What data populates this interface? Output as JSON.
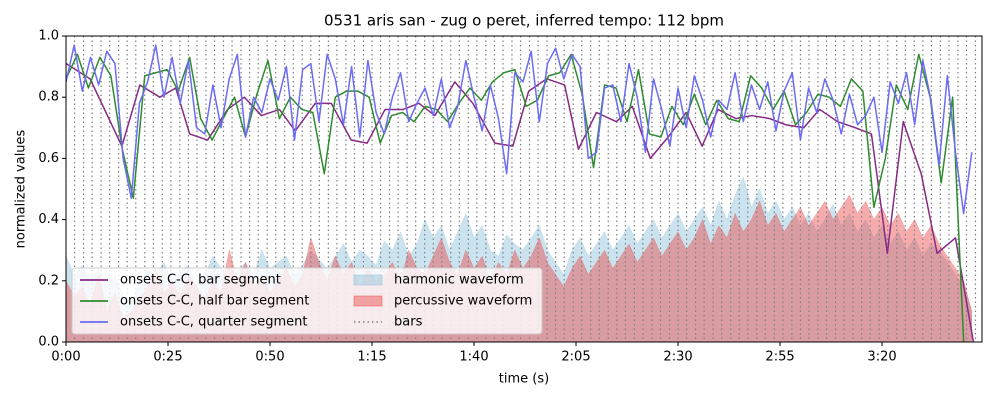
{
  "chart_data": {
    "type": "line",
    "title": "0531 aris san - zug o peret, inferred tempo: 112 bpm",
    "xlabel": "time (s)",
    "ylabel": "normalized values",
    "xlim": [
      0,
      224.5
    ],
    "ylim": [
      0,
      1
    ],
    "xticks": [
      {
        "value": 0,
        "label": "0:00"
      },
      {
        "value": 25,
        "label": "0:25"
      },
      {
        "value": 50,
        "label": "0:50"
      },
      {
        "value": 75,
        "label": "1:15"
      },
      {
        "value": 100,
        "label": "1:40"
      },
      {
        "value": 125,
        "label": "2:05"
      },
      {
        "value": 150,
        "label": "2:30"
      },
      {
        "value": 175,
        "label": "2:55"
      },
      {
        "value": 200,
        "label": "3:20"
      }
    ],
    "yticks": [
      {
        "value": 0,
        "label": "0.0"
      },
      0.2,
      0.4,
      0.6,
      0.8,
      {
        "value": 1,
        "label": "1.0"
      }
    ],
    "legend": "lower left",
    "series": [
      {
        "name": "onsets C-C, bar segment",
        "color": "#862a86",
        "kind": "line",
        "x": [
          0,
          5.9,
          13.7,
          18.1,
          23.0,
          26.9,
          30.3,
          34.7,
          39.6,
          43.7,
          47.9,
          52.3,
          56.2,
          61.1,
          65.0,
          69.9,
          73.8,
          78.2,
          82.6,
          86.5,
          90.4,
          95.3,
          99.7,
          105.1,
          109.5,
          113.4,
          117.8,
          122.2,
          125.6,
          130.0,
          134.9,
          138.8,
          143.2,
          147.6,
          152.0,
          155.9,
          159.8,
          164.2,
          168.1,
          172.5,
          176.4,
          180.8,
          184.7,
          189.1,
          193.5,
          197.4,
          201.3,
          205.2,
          209.6,
          213.5,
          218.0,
          222.4
        ],
        "values": [
          0.91,
          0.86,
          0.64,
          0.84,
          0.8,
          0.83,
          0.68,
          0.66,
          0.76,
          0.8,
          0.74,
          0.76,
          0.69,
          0.78,
          0.78,
          0.66,
          0.65,
          0.76,
          0.76,
          0.78,
          0.74,
          0.85,
          0.78,
          0.65,
          0.64,
          0.82,
          0.86,
          0.84,
          0.63,
          0.75,
          0.72,
          0.77,
          0.6,
          0.67,
          0.75,
          0.64,
          0.76,
          0.73,
          0.74,
          0.73,
          0.71,
          0.7,
          0.76,
          0.72,
          0.7,
          0.68,
          0.29,
          0.72,
          0.55,
          0.29,
          0.34,
          0.0
        ]
      },
      {
        "name": "onsets C-C, half bar segment",
        "color": "#2e8b2e",
        "kind": "line",
        "x": [
          0,
          2.8,
          5.5,
          8.3,
          11,
          13.8,
          16.5,
          19.3,
          22,
          24.8,
          27.5,
          30.3,
          33,
          35.8,
          38.5,
          41.3,
          44,
          46.8,
          49.5,
          52.3,
          55,
          57.8,
          60.5,
          63.3,
          66,
          68.8,
          71.5,
          74.3,
          77,
          79.8,
          82.5,
          85.3,
          88,
          90.8,
          93.5,
          96.3,
          99,
          101.8,
          104.5,
          107.3,
          110,
          112.8,
          115.5,
          118.3,
          121,
          123.8,
          126.5,
          129.3,
          132,
          134.8,
          137.5,
          140.3,
          143,
          145.8,
          148.5,
          151.3,
          154,
          156.8,
          159.5,
          162.3,
          165,
          167.8,
          170.5,
          173.3,
          176,
          178.8,
          181.5,
          184.3,
          187,
          189.8,
          192.5,
          195.3,
          198,
          200.8,
          203.5,
          206.3,
          209,
          211.8,
          214.5,
          217.3,
          220
        ],
        "values": [
          0.86,
          0.94,
          0.83,
          0.93,
          0.87,
          0.63,
          0.47,
          0.87,
          0.88,
          0.89,
          0.82,
          0.93,
          0.73,
          0.66,
          0.73,
          0.8,
          0.67,
          0.81,
          0.92,
          0.73,
          0.8,
          0.76,
          0.75,
          0.55,
          0.8,
          0.82,
          0.82,
          0.8,
          0.65,
          0.74,
          0.75,
          0.72,
          0.77,
          0.76,
          0.72,
          0.78,
          0.83,
          0.79,
          0.85,
          0.88,
          0.89,
          0.77,
          0.79,
          0.87,
          0.88,
          0.94,
          0.81,
          0.57,
          0.84,
          0.83,
          0.72,
          0.89,
          0.68,
          0.67,
          0.77,
          0.71,
          0.81,
          0.71,
          0.79,
          0.73,
          0.72,
          0.87,
          0.83,
          0.76,
          0.82,
          0.71,
          0.75,
          0.81,
          0.8,
          0.77,
          0.86,
          0.82,
          0.44,
          0.6,
          0.84,
          0.76,
          0.94,
          0.8,
          0.52,
          0.8,
          0.0
        ]
      },
      {
        "name": "onsets C-C, quarter segment",
        "color": "#6b6bf5",
        "kind": "line",
        "x": [
          0,
          2,
          4,
          6,
          8,
          10,
          12,
          14,
          16,
          18,
          20,
          22,
          24,
          26,
          28,
          30,
          32,
          34,
          36,
          38,
          40,
          42,
          44,
          46,
          48,
          50,
          52,
          54,
          56,
          58,
          60,
          62,
          64,
          66,
          68,
          70,
          72,
          74,
          76,
          78,
          80,
          82,
          84,
          86,
          88,
          90,
          92,
          94,
          96,
          98,
          100,
          102,
          104,
          106,
          108,
          110,
          112,
          114,
          116,
          118,
          120,
          122,
          124,
          126,
          128,
          130,
          132,
          134,
          136,
          138,
          140,
          142,
          144,
          146,
          148,
          150,
          152,
          154,
          156,
          158,
          160,
          162,
          164,
          166,
          168,
          170,
          172,
          174,
          176,
          178,
          180,
          182,
          184,
          186,
          188,
          190,
          192,
          194,
          196,
          198,
          200,
          202,
          204,
          206,
          208,
          210,
          212,
          214,
          216,
          218,
          220,
          222
        ],
        "values": [
          0.85,
          0.97,
          0.82,
          0.93,
          0.84,
          0.95,
          0.91,
          0.6,
          0.47,
          0.78,
          0.85,
          0.97,
          0.8,
          0.93,
          0.78,
          0.92,
          0.7,
          0.68,
          0.84,
          0.7,
          0.86,
          0.94,
          0.67,
          0.8,
          0.75,
          0.86,
          0.79,
          0.9,
          0.66,
          0.89,
          0.91,
          0.72,
          0.94,
          0.86,
          0.71,
          0.9,
          0.67,
          0.92,
          0.75,
          0.68,
          0.8,
          0.88,
          0.72,
          0.78,
          0.83,
          0.74,
          0.86,
          0.7,
          0.77,
          0.92,
          0.8,
          0.69,
          0.84,
          0.73,
          0.55,
          0.88,
          0.85,
          0.95,
          0.72,
          0.91,
          0.96,
          0.86,
          0.94,
          0.9,
          0.6,
          0.62,
          0.83,
          0.84,
          0.72,
          0.91,
          0.8,
          0.62,
          0.86,
          0.76,
          0.64,
          0.83,
          0.7,
          0.87,
          0.79,
          0.67,
          0.79,
          0.76,
          0.88,
          0.72,
          0.84,
          0.76,
          0.85,
          0.69,
          0.82,
          0.88,
          0.66,
          0.83,
          0.75,
          0.86,
          0.79,
          0.68,
          0.81,
          0.71,
          0.74,
          0.8,
          0.62,
          0.85,
          0.78,
          0.88,
          0.71,
          0.92,
          0.79,
          0.58,
          0.87,
          0.62,
          0.42,
          0.62
        ]
      },
      {
        "name": "harmonic waveform",
        "color": "rgba(140,190,220,0.45)",
        "kind": "area",
        "x": [
          0,
          2,
          4,
          6,
          8,
          10,
          12,
          14,
          16,
          18,
          20,
          22,
          24,
          26,
          28,
          30,
          32,
          34,
          36,
          38,
          40,
          42,
          44,
          46,
          48,
          50,
          52,
          54,
          56,
          58,
          60,
          62,
          64,
          66,
          68,
          70,
          72,
          74,
          76,
          78,
          80,
          82,
          84,
          86,
          88,
          90,
          92,
          94,
          96,
          98,
          100,
          102,
          104,
          106,
          108,
          110,
          112,
          114,
          116,
          118,
          120,
          122,
          124,
          126,
          128,
          130,
          132,
          134,
          136,
          138,
          140,
          142,
          144,
          146,
          148,
          150,
          152,
          154,
          156,
          158,
          160,
          162,
          164,
          166,
          168,
          170,
          172,
          174,
          176,
          178,
          180,
          182,
          184,
          186,
          188,
          190,
          192,
          194,
          196,
          198,
          200,
          202,
          204,
          206,
          208,
          210,
          212,
          214,
          216,
          218,
          220,
          222
        ],
        "values": [
          0.28,
          0.22,
          0.25,
          0.2,
          0.24,
          0.18,
          0.22,
          0.15,
          0.12,
          0.2,
          0.24,
          0.22,
          0.26,
          0.2,
          0.23,
          0.25,
          0.18,
          0.22,
          0.28,
          0.24,
          0.2,
          0.23,
          0.26,
          0.22,
          0.3,
          0.24,
          0.26,
          0.28,
          0.22,
          0.25,
          0.3,
          0.27,
          0.24,
          0.28,
          0.32,
          0.26,
          0.3,
          0.28,
          0.25,
          0.33,
          0.3,
          0.36,
          0.28,
          0.32,
          0.4,
          0.34,
          0.38,
          0.3,
          0.36,
          0.42,
          0.34,
          0.38,
          0.3,
          0.28,
          0.35,
          0.32,
          0.3,
          0.34,
          0.38,
          0.3,
          0.26,
          0.22,
          0.3,
          0.34,
          0.28,
          0.32,
          0.36,
          0.3,
          0.34,
          0.38,
          0.32,
          0.36,
          0.4,
          0.34,
          0.38,
          0.42,
          0.36,
          0.4,
          0.44,
          0.38,
          0.46,
          0.4,
          0.48,
          0.54,
          0.44,
          0.5,
          0.42,
          0.46,
          0.4,
          0.44,
          0.38,
          0.42,
          0.36,
          0.4,
          0.45,
          0.38,
          0.42,
          0.36,
          0.4,
          0.34,
          0.38,
          0.32,
          0.36,
          0.3,
          0.34,
          0.28,
          0.32,
          0.3,
          0.26,
          0.22,
          0.18,
          0.1
        ]
      },
      {
        "name": "percussive waveform",
        "color": "rgba(235,70,70,0.45)",
        "kind": "area",
        "x": [
          0,
          2,
          4,
          6,
          8,
          10,
          12,
          14,
          16,
          18,
          20,
          22,
          24,
          26,
          28,
          30,
          32,
          34,
          36,
          38,
          40,
          42,
          44,
          46,
          48,
          50,
          52,
          54,
          56,
          58,
          60,
          62,
          64,
          66,
          68,
          70,
          72,
          74,
          76,
          78,
          80,
          82,
          84,
          86,
          88,
          90,
          92,
          94,
          96,
          98,
          100,
          102,
          104,
          106,
          108,
          110,
          112,
          114,
          116,
          118,
          120,
          122,
          124,
          126,
          128,
          130,
          132,
          134,
          136,
          138,
          140,
          142,
          144,
          146,
          148,
          150,
          152,
          154,
          156,
          158,
          160,
          162,
          164,
          166,
          168,
          170,
          172,
          174,
          176,
          178,
          180,
          182,
          184,
          186,
          188,
          190,
          192,
          194,
          196,
          198,
          200,
          202,
          204,
          206,
          208,
          210,
          212,
          214,
          216,
          218,
          220,
          222
        ],
        "values": [
          0.2,
          0.15,
          0.18,
          0.12,
          0.22,
          0.1,
          0.16,
          0.08,
          0.1,
          0.14,
          0.18,
          0.24,
          0.16,
          0.2,
          0.15,
          0.22,
          0.18,
          0.14,
          0.2,
          0.16,
          0.3,
          0.2,
          0.26,
          0.18,
          0.22,
          0.16,
          0.2,
          0.24,
          0.18,
          0.22,
          0.34,
          0.26,
          0.2,
          0.28,
          0.22,
          0.26,
          0.18,
          0.24,
          0.2,
          0.22,
          0.26,
          0.2,
          0.3,
          0.24,
          0.22,
          0.28,
          0.34,
          0.26,
          0.22,
          0.3,
          0.24,
          0.28,
          0.2,
          0.26,
          0.22,
          0.3,
          0.24,
          0.28,
          0.34,
          0.26,
          0.22,
          0.18,
          0.24,
          0.28,
          0.22,
          0.26,
          0.3,
          0.24,
          0.28,
          0.32,
          0.26,
          0.3,
          0.34,
          0.28,
          0.32,
          0.36,
          0.3,
          0.34,
          0.4,
          0.32,
          0.38,
          0.34,
          0.42,
          0.36,
          0.4,
          0.46,
          0.38,
          0.42,
          0.36,
          0.4,
          0.44,
          0.38,
          0.42,
          0.46,
          0.4,
          0.44,
          0.48,
          0.42,
          0.46,
          0.4,
          0.44,
          0.38,
          0.42,
          0.36,
          0.4,
          0.34,
          0.38,
          0.32,
          0.28,
          0.24,
          0.2,
          0.1
        ]
      }
    ],
    "bars": {
      "name": "bars",
      "color": "#808080",
      "x": [
        0,
        2.1,
        4.3,
        6.4,
        8.6,
        10.7,
        12.9,
        15.0,
        17.1,
        19.3,
        21.4,
        23.6,
        25.7,
        27.9,
        30.0,
        32.1,
        34.3,
        36.4,
        38.6,
        40.7,
        42.9,
        45.0,
        47.1,
        49.3,
        51.4,
        53.6,
        55.7,
        57.9,
        60.0,
        62.1,
        64.3,
        66.4,
        68.6,
        70.7,
        72.9,
        75.0,
        77.1,
        79.3,
        81.4,
        83.6,
        85.7,
        87.9,
        90.0,
        92.1,
        94.3,
        96.4,
        98.6,
        100.7,
        102.9,
        105.0,
        107.1,
        109.3,
        111.4,
        113.6,
        115.7,
        117.9,
        120.0,
        122.1,
        124.3,
        126.4,
        128.6,
        130.7,
        132.9,
        135.0,
        137.1,
        139.3,
        141.4,
        143.6,
        145.7,
        147.9,
        150.0,
        152.1,
        154.3,
        156.4,
        158.6,
        160.7,
        162.9,
        165.0,
        167.1,
        169.3,
        171.4,
        173.6,
        175.7,
        177.9,
        180.0,
        182.1,
        184.3,
        186.4,
        188.6,
        190.7,
        192.9,
        195.0,
        197.1,
        199.3,
        201.4,
        203.6,
        205.7,
        207.9,
        210.0,
        212.1,
        214.3,
        216.4,
        218.6,
        220.7,
        222.9
      ]
    }
  }
}
